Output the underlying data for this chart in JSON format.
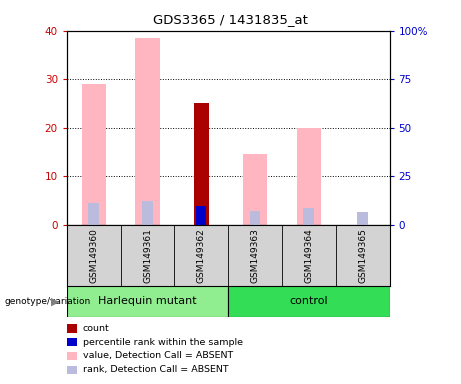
{
  "title": "GDS3365 / 1431835_at",
  "samples": [
    "GSM149360",
    "GSM149361",
    "GSM149362",
    "GSM149363",
    "GSM149364",
    "GSM149365"
  ],
  "group_labels": [
    "Harlequin mutant",
    "control"
  ],
  "group_colors": [
    "#90EE90",
    "#33DD55"
  ],
  "pink_values": [
    29.0,
    38.5,
    0,
    14.5,
    20.0,
    0
  ],
  "pink_rank_values": [
    11.0,
    12.0,
    0,
    7.0,
    8.5,
    0
  ],
  "red_count_values": [
    0,
    0,
    25.0,
    0,
    0,
    0
  ],
  "blue_rank_values": [
    0,
    0,
    9.8,
    0,
    0,
    0
  ],
  "absent_rank_values": [
    0,
    0,
    0,
    0,
    0,
    6.5
  ],
  "absent_value_values": [
    0,
    0,
    0,
    0,
    0,
    0
  ],
  "ylim_left": [
    0,
    40
  ],
  "ylim_right": [
    0,
    100
  ],
  "yticks_left": [
    0,
    10,
    20,
    30,
    40
  ],
  "yticks_right": [
    0,
    25,
    50,
    75,
    100
  ],
  "yticklabels_right": [
    "0",
    "25",
    "50",
    "75",
    "100%"
  ],
  "left_tick_color": "#CC0000",
  "right_tick_color": "#0000CC",
  "pink_color": "#FFB6C1",
  "light_blue_color": "#BBBBDD",
  "red_color": "#AA0000",
  "blue_color": "#0000CC",
  "legend_items": [
    {
      "label": "count",
      "color": "#AA0000"
    },
    {
      "label": "percentile rank within the sample",
      "color": "#0000CC"
    },
    {
      "label": "value, Detection Call = ABSENT",
      "color": "#FFB6C1"
    },
    {
      "label": "rank, Detection Call = ABSENT",
      "color": "#BBBBDD"
    }
  ]
}
